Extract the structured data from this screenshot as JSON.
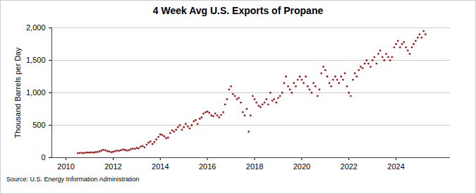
{
  "chart_data": {
    "type": "scatter",
    "title": "4 Week Avg U.S. Exports of Propane",
    "y_label": "Thousand Barrels per Day",
    "source": "Source: U.S. Energy Information Administration",
    "marker": "circle",
    "color": "#a0191a",
    "grid": true,
    "xlim": [
      2009.4,
      2026.3
    ],
    "xticks": [
      2010,
      2012,
      2014,
      2016,
      2018,
      2020,
      2022,
      2024
    ],
    "ylim": [
      0,
      2000
    ],
    "yticks": [
      0,
      500,
      {
        "value": 1000,
        "label": "1,000"
      },
      {
        "value": 1500,
        "label": "1,500"
      },
      {
        "value": 2000,
        "label": "2,000"
      }
    ],
    "x": [
      2010.5,
      2010.58,
      2010.67,
      2010.75,
      2010.83,
      2010.92,
      2011.0,
      2011.08,
      2011.17,
      2011.25,
      2011.33,
      2011.42,
      2011.5,
      2011.58,
      2011.67,
      2011.75,
      2011.83,
      2011.92,
      2012.0,
      2012.08,
      2012.17,
      2012.25,
      2012.33,
      2012.42,
      2012.5,
      2012.58,
      2012.67,
      2012.75,
      2012.83,
      2012.92,
      2013.0,
      2013.08,
      2013.17,
      2013.25,
      2013.33,
      2013.42,
      2013.5,
      2013.58,
      2013.67,
      2013.75,
      2013.83,
      2013.92,
      2014.0,
      2014.08,
      2014.17,
      2014.25,
      2014.33,
      2014.42,
      2014.5,
      2014.58,
      2014.67,
      2014.75,
      2014.83,
      2014.92,
      2015.0,
      2015.08,
      2015.17,
      2015.25,
      2015.33,
      2015.42,
      2015.5,
      2015.58,
      2015.67,
      2015.75,
      2015.83,
      2015.92,
      2016.0,
      2016.08,
      2016.17,
      2016.25,
      2016.33,
      2016.42,
      2016.5,
      2016.58,
      2016.67,
      2016.75,
      2016.83,
      2016.92,
      2017.0,
      2017.08,
      2017.17,
      2017.25,
      2017.33,
      2017.42,
      2017.5,
      2017.58,
      2017.67,
      2017.75,
      2017.83,
      2017.92,
      2018.0,
      2018.08,
      2018.17,
      2018.25,
      2018.33,
      2018.42,
      2018.5,
      2018.58,
      2018.67,
      2018.75,
      2018.83,
      2018.92,
      2019.0,
      2019.08,
      2019.17,
      2019.25,
      2019.33,
      2019.42,
      2019.5,
      2019.58,
      2019.67,
      2019.75,
      2019.83,
      2019.92,
      2020.0,
      2020.08,
      2020.17,
      2020.25,
      2020.33,
      2020.42,
      2020.5,
      2020.58,
      2020.67,
      2020.75,
      2020.83,
      2020.92,
      2021.0,
      2021.08,
      2021.17,
      2021.25,
      2021.33,
      2021.42,
      2021.5,
      2021.58,
      2021.67,
      2021.75,
      2021.83,
      2021.92,
      2022.0,
      2022.08,
      2022.17,
      2022.25,
      2022.33,
      2022.42,
      2022.5,
      2022.58,
      2022.67,
      2022.75,
      2022.83,
      2022.92,
      2023.0,
      2023.08,
      2023.17,
      2023.25,
      2023.33,
      2023.42,
      2023.5,
      2023.58,
      2023.67,
      2023.75,
      2023.83,
      2023.92,
      2024.0,
      2024.08,
      2024.17,
      2024.25,
      2024.33,
      2024.42,
      2024.5,
      2024.58,
      2024.67,
      2024.75,
      2024.83,
      2024.92,
      2025.0,
      2025.08,
      2025.17,
      2025.25
    ],
    "values": [
      70,
      72,
      75,
      70,
      78,
      80,
      78,
      82,
      80,
      85,
      88,
      95,
      110,
      120,
      115,
      100,
      95,
      85,
      90,
      100,
      110,
      105,
      115,
      125,
      120,
      110,
      115,
      130,
      140,
      135,
      150,
      145,
      170,
      180,
      160,
      200,
      230,
      250,
      210,
      240,
      280,
      320,
      360,
      350,
      330,
      300,
      310,
      380,
      420,
      400,
      430,
      470,
      500,
      430,
      470,
      520,
      480,
      450,
      500,
      560,
      580,
      520,
      600,
      620,
      680,
      700,
      710,
      690,
      650,
      640,
      680,
      650,
      620,
      660,
      700,
      820,
      900,
      1050,
      1100,
      980,
      950,
      900,
      920,
      850,
      700,
      650,
      750,
      400,
      650,
      950,
      900,
      850,
      800,
      780,
      820,
      850,
      900,
      820,
      1000,
      880,
      900,
      850,
      920,
      950,
      1000,
      1150,
      1250,
      1100,
      1050,
      1000,
      1150,
      1100,
      1200,
      1250,
      1200,
      1150,
      1250,
      1100,
      1050,
      1000,
      1150,
      1100,
      950,
      1050,
      1300,
      1400,
      1350,
      1250,
      1150,
      1100,
      1200,
      1250,
      1200,
      1150,
      1250,
      1200,
      1300,
      1100,
      1000,
      950,
      1200,
      1300,
      1250,
      1350,
      1400,
      1380,
      1450,
      1500,
      1450,
      1400,
      1500,
      1550,
      1450,
      1600,
      1650,
      1550,
      1500,
      1600,
      1550,
      1500,
      1550,
      1700,
      1750,
      1800,
      1700,
      1750,
      1780,
      1700,
      1650,
      1600,
      1700,
      1750,
      1800,
      1850,
      1900,
      1850,
      1950,
      1900
    ]
  }
}
